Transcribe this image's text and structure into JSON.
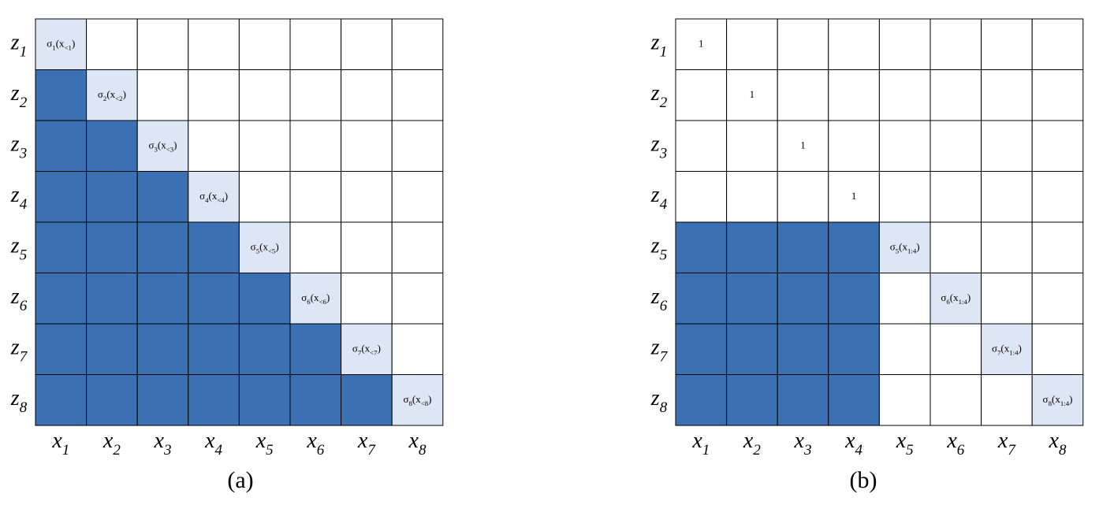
{
  "panels": [
    {
      "caption": "(a)",
      "row_labels": [
        [
          {
            "t": "z"
          },
          {
            "t": "1",
            "sub": true
          }
        ],
        [
          {
            "t": "z"
          },
          {
            "t": "2",
            "sub": true
          }
        ],
        [
          {
            "t": "z"
          },
          {
            "t": "3",
            "sub": true
          }
        ],
        [
          {
            "t": "z"
          },
          {
            "t": "4",
            "sub": true
          }
        ],
        [
          {
            "t": "z"
          },
          {
            "t": "5",
            "sub": true
          }
        ],
        [
          {
            "t": "z"
          },
          {
            "t": "6",
            "sub": true
          }
        ],
        [
          {
            "t": "z"
          },
          {
            "t": "7",
            "sub": true
          }
        ],
        [
          {
            "t": "z"
          },
          {
            "t": "8",
            "sub": true
          }
        ]
      ],
      "col_labels": [
        [
          {
            "t": "x"
          },
          {
            "t": "1",
            "sub": true
          }
        ],
        [
          {
            "t": "x"
          },
          {
            "t": "2",
            "sub": true
          }
        ],
        [
          {
            "t": "x"
          },
          {
            "t": "3",
            "sub": true
          }
        ],
        [
          {
            "t": "x"
          },
          {
            "t": "4",
            "sub": true
          }
        ],
        [
          {
            "t": "x"
          },
          {
            "t": "5",
            "sub": true
          }
        ],
        [
          {
            "t": "x"
          },
          {
            "t": "6",
            "sub": true
          }
        ],
        [
          {
            "t": "x"
          },
          {
            "t": "7",
            "sub": true
          }
        ],
        [
          {
            "t": "x"
          },
          {
            "t": "8",
            "sub": true
          }
        ]
      ],
      "cells": [
        [
          {
            "color": "#dce6f4",
            "text": [
              {
                "t": "σ"
              },
              {
                "t": "1",
                "sub": true
              },
              {
                "t": "(x"
              },
              {
                "t": "<1",
                "sub": true
              },
              {
                "t": ")"
              }
            ]
          },
          {
            "color": "#ffffff"
          },
          {
            "color": "#ffffff"
          },
          {
            "color": "#ffffff"
          },
          {
            "color": "#ffffff"
          },
          {
            "color": "#ffffff"
          },
          {
            "color": "#ffffff"
          },
          {
            "color": "#ffffff"
          }
        ],
        [
          {
            "color": "#3b70b2"
          },
          {
            "color": "#dce6f4",
            "text": [
              {
                "t": "σ"
              },
              {
                "t": "2",
                "sub": true
              },
              {
                "t": "(x"
              },
              {
                "t": "<2",
                "sub": true
              },
              {
                "t": ")"
              }
            ]
          },
          {
            "color": "#ffffff"
          },
          {
            "color": "#ffffff"
          },
          {
            "color": "#ffffff"
          },
          {
            "color": "#ffffff"
          },
          {
            "color": "#ffffff"
          },
          {
            "color": "#ffffff"
          }
        ],
        [
          {
            "color": "#3b70b2"
          },
          {
            "color": "#3b70b2"
          },
          {
            "color": "#dce6f4",
            "text": [
              {
                "t": "σ"
              },
              {
                "t": "3",
                "sub": true
              },
              {
                "t": "(x"
              },
              {
                "t": "<3",
                "sub": true
              },
              {
                "t": ")"
              }
            ]
          },
          {
            "color": "#ffffff"
          },
          {
            "color": "#ffffff"
          },
          {
            "color": "#ffffff"
          },
          {
            "color": "#ffffff"
          },
          {
            "color": "#ffffff"
          }
        ],
        [
          {
            "color": "#3b70b2"
          },
          {
            "color": "#3b70b2"
          },
          {
            "color": "#3b70b2"
          },
          {
            "color": "#dce6f4",
            "text": [
              {
                "t": "σ"
              },
              {
                "t": "4",
                "sub": true
              },
              {
                "t": "(x"
              },
              {
                "t": "<4",
                "sub": true
              },
              {
                "t": ")"
              }
            ]
          },
          {
            "color": "#ffffff"
          },
          {
            "color": "#ffffff"
          },
          {
            "color": "#ffffff"
          },
          {
            "color": "#ffffff"
          }
        ],
        [
          {
            "color": "#3b70b2"
          },
          {
            "color": "#3b70b2"
          },
          {
            "color": "#3b70b2"
          },
          {
            "color": "#3b70b2"
          },
          {
            "color": "#dce6f4",
            "text": [
              {
                "t": "σ"
              },
              {
                "t": "5",
                "sub": true
              },
              {
                "t": "(x"
              },
              {
                "t": "<5",
                "sub": true
              },
              {
                "t": ")"
              }
            ]
          },
          {
            "color": "#ffffff"
          },
          {
            "color": "#ffffff"
          },
          {
            "color": "#ffffff"
          }
        ],
        [
          {
            "color": "#3b70b2"
          },
          {
            "color": "#3b70b2"
          },
          {
            "color": "#3b70b2"
          },
          {
            "color": "#3b70b2"
          },
          {
            "color": "#3b70b2"
          },
          {
            "color": "#dce6f4",
            "text": [
              {
                "t": "σ"
              },
              {
                "t": "6",
                "sub": true
              },
              {
                "t": "(x"
              },
              {
                "t": "<6",
                "sub": true
              },
              {
                "t": ")"
              }
            ]
          },
          {
            "color": "#ffffff"
          },
          {
            "color": "#ffffff"
          }
        ],
        [
          {
            "color": "#3b70b2"
          },
          {
            "color": "#3b70b2"
          },
          {
            "color": "#3b70b2"
          },
          {
            "color": "#3b70b2"
          },
          {
            "color": "#3b70b2"
          },
          {
            "color": "#3b70b2"
          },
          {
            "color": "#dce6f4",
            "text": [
              {
                "t": "σ"
              },
              {
                "t": "7",
                "sub": true
              },
              {
                "t": "(x"
              },
              {
                "t": "<7",
                "sub": true
              },
              {
                "t": ")"
              }
            ]
          },
          {
            "color": "#ffffff"
          }
        ],
        [
          {
            "color": "#3b70b2"
          },
          {
            "color": "#3b70b2"
          },
          {
            "color": "#3b70b2"
          },
          {
            "color": "#3b70b2"
          },
          {
            "color": "#3b70b2"
          },
          {
            "color": "#3b70b2"
          },
          {
            "color": "#3b70b2"
          },
          {
            "color": "#dce6f4",
            "text": [
              {
                "t": "σ"
              },
              {
                "t": "8",
                "sub": true
              },
              {
                "t": "(x"
              },
              {
                "t": "<8",
                "sub": true
              },
              {
                "t": ")"
              }
            ]
          }
        ]
      ]
    },
    {
      "caption": "(b)",
      "row_labels": [
        [
          {
            "t": "z"
          },
          {
            "t": "1",
            "sub": true
          }
        ],
        [
          {
            "t": "z"
          },
          {
            "t": "2",
            "sub": true
          }
        ],
        [
          {
            "t": "z"
          },
          {
            "t": "3",
            "sub": true
          }
        ],
        [
          {
            "t": "z"
          },
          {
            "t": "4",
            "sub": true
          }
        ],
        [
          {
            "t": "z"
          },
          {
            "t": "5",
            "sub": true
          }
        ],
        [
          {
            "t": "z"
          },
          {
            "t": "6",
            "sub": true
          }
        ],
        [
          {
            "t": "z"
          },
          {
            "t": "7",
            "sub": true
          }
        ],
        [
          {
            "t": "z"
          },
          {
            "t": "8",
            "sub": true
          }
        ]
      ],
      "col_labels": [
        [
          {
            "t": "x"
          },
          {
            "t": "1",
            "sub": true
          }
        ],
        [
          {
            "t": "x"
          },
          {
            "t": "2",
            "sub": true
          }
        ],
        [
          {
            "t": "x"
          },
          {
            "t": "3",
            "sub": true
          }
        ],
        [
          {
            "t": "x"
          },
          {
            "t": "4",
            "sub": true
          }
        ],
        [
          {
            "t": "x"
          },
          {
            "t": "5",
            "sub": true
          }
        ],
        [
          {
            "t": "x"
          },
          {
            "t": "6",
            "sub": true
          }
        ],
        [
          {
            "t": "x"
          },
          {
            "t": "7",
            "sub": true
          }
        ],
        [
          {
            "t": "x"
          },
          {
            "t": "8",
            "sub": true
          }
        ]
      ],
      "cells": [
        [
          {
            "color": "#ffffff",
            "text": [
              {
                "t": "1"
              }
            ]
          },
          {
            "color": "#ffffff"
          },
          {
            "color": "#ffffff"
          },
          {
            "color": "#ffffff"
          },
          {
            "color": "#ffffff"
          },
          {
            "color": "#ffffff"
          },
          {
            "color": "#ffffff"
          },
          {
            "color": "#ffffff"
          }
        ],
        [
          {
            "color": "#ffffff"
          },
          {
            "color": "#ffffff",
            "text": [
              {
                "t": "1"
              }
            ]
          },
          {
            "color": "#ffffff"
          },
          {
            "color": "#ffffff"
          },
          {
            "color": "#ffffff"
          },
          {
            "color": "#ffffff"
          },
          {
            "color": "#ffffff"
          },
          {
            "color": "#ffffff"
          }
        ],
        [
          {
            "color": "#ffffff"
          },
          {
            "color": "#ffffff"
          },
          {
            "color": "#ffffff",
            "text": [
              {
                "t": "1"
              }
            ]
          },
          {
            "color": "#ffffff"
          },
          {
            "color": "#ffffff"
          },
          {
            "color": "#ffffff"
          },
          {
            "color": "#ffffff"
          },
          {
            "color": "#ffffff"
          }
        ],
        [
          {
            "color": "#ffffff"
          },
          {
            "color": "#ffffff"
          },
          {
            "color": "#ffffff"
          },
          {
            "color": "#ffffff",
            "text": [
              {
                "t": "1"
              }
            ]
          },
          {
            "color": "#ffffff"
          },
          {
            "color": "#ffffff"
          },
          {
            "color": "#ffffff"
          },
          {
            "color": "#ffffff"
          }
        ],
        [
          {
            "color": "#3b70b2"
          },
          {
            "color": "#3b70b2"
          },
          {
            "color": "#3b70b2"
          },
          {
            "color": "#3b70b2"
          },
          {
            "color": "#dce6f4",
            "text": [
              {
                "t": "σ"
              },
              {
                "t": "5",
                "sub": true
              },
              {
                "t": "(x"
              },
              {
                "t": "1:4",
                "sub": true
              },
              {
                "t": ")"
              }
            ]
          },
          {
            "color": "#ffffff"
          },
          {
            "color": "#ffffff"
          },
          {
            "color": "#ffffff"
          }
        ],
        [
          {
            "color": "#3b70b2"
          },
          {
            "color": "#3b70b2"
          },
          {
            "color": "#3b70b2"
          },
          {
            "color": "#3b70b2"
          },
          {
            "color": "#ffffff"
          },
          {
            "color": "#dce6f4",
            "text": [
              {
                "t": "σ"
              },
              {
                "t": "6",
                "sub": true
              },
              {
                "t": "(x"
              },
              {
                "t": "1:4",
                "sub": true
              },
              {
                "t": ")"
              }
            ]
          },
          {
            "color": "#ffffff"
          },
          {
            "color": "#ffffff"
          }
        ],
        [
          {
            "color": "#3b70b2"
          },
          {
            "color": "#3b70b2"
          },
          {
            "color": "#3b70b2"
          },
          {
            "color": "#3b70b2"
          },
          {
            "color": "#ffffff"
          },
          {
            "color": "#ffffff"
          },
          {
            "color": "#dce6f4",
            "text": [
              {
                "t": "σ"
              },
              {
                "t": "7",
                "sub": true
              },
              {
                "t": "(x"
              },
              {
                "t": "1:4",
                "sub": true
              },
              {
                "t": ")"
              }
            ]
          },
          {
            "color": "#ffffff"
          }
        ],
        [
          {
            "color": "#3b70b2"
          },
          {
            "color": "#3b70b2"
          },
          {
            "color": "#3b70b2"
          },
          {
            "color": "#3b70b2"
          },
          {
            "color": "#ffffff"
          },
          {
            "color": "#ffffff"
          },
          {
            "color": "#ffffff"
          },
          {
            "color": "#dce6f4",
            "text": [
              {
                "t": "σ"
              },
              {
                "t": "8",
                "sub": true
              },
              {
                "t": "(x"
              },
              {
                "t": "1:4",
                "sub": true
              },
              {
                "t": ")"
              }
            ]
          }
        ]
      ]
    }
  ]
}
